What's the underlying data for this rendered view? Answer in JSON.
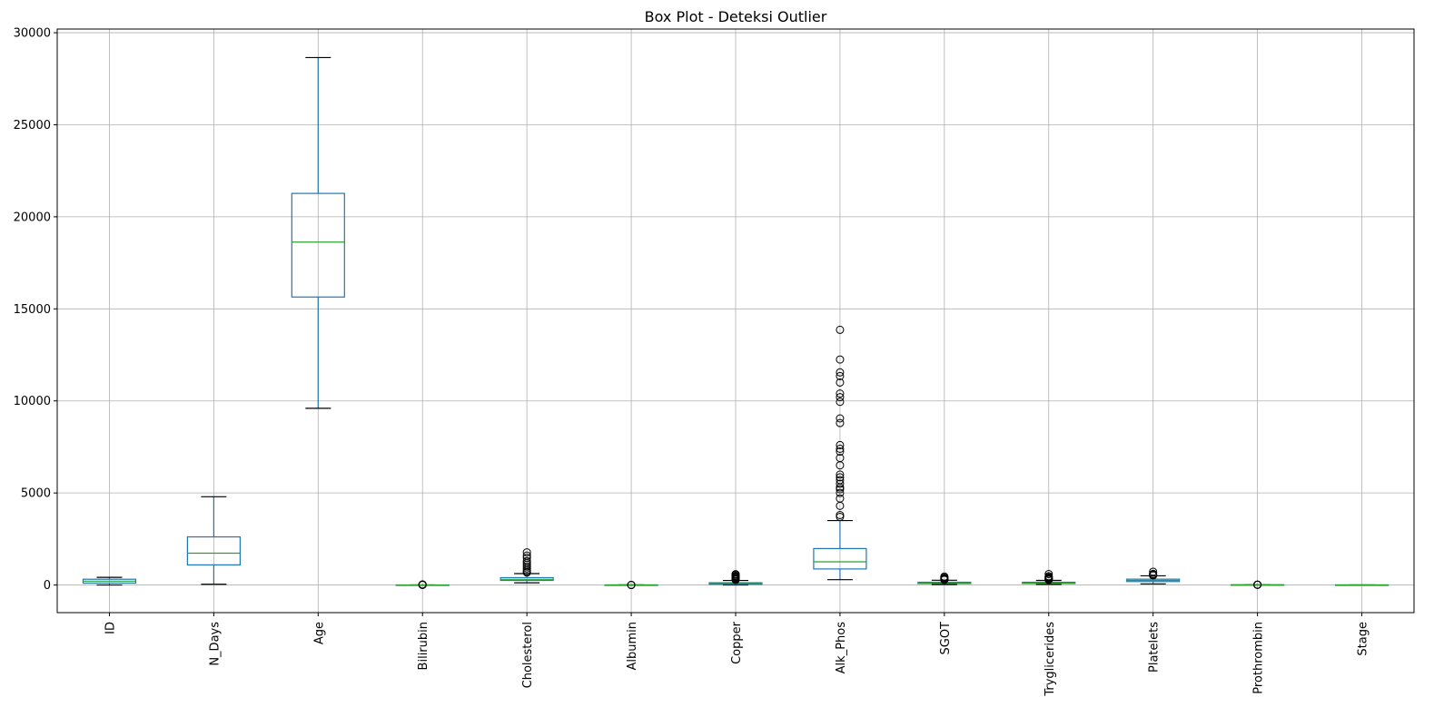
{
  "chart_data": {
    "type": "box",
    "title": "Box Plot - Deteksi Outlier",
    "xlabel": "",
    "ylabel": "",
    "ylim": [
      -1500,
      30200
    ],
    "yticks": [
      0,
      5000,
      10000,
      15000,
      20000,
      25000,
      30000
    ],
    "grid": true,
    "categories": [
      "ID",
      "N_Days",
      "Age",
      "Bilirubin",
      "Cholesterol",
      "Albumin",
      "Copper",
      "Alk_Phos",
      "SGOT",
      "Tryglicerides",
      "Platelets",
      "Prothrombin",
      "Stage"
    ],
    "boxes": [
      {
        "name": "ID",
        "whislo": 1,
        "q1": 105,
        "med": 209,
        "q3": 314,
        "whishi": 418,
        "fliers": []
      },
      {
        "name": "N_Days",
        "whislo": 41,
        "q1": 1093,
        "med": 1730,
        "q3": 2614,
        "whishi": 4795,
        "fliers": []
      },
      {
        "name": "Age",
        "whislo": 9598,
        "q1": 15644,
        "med": 18628,
        "q3": 21272,
        "whishi": 28650,
        "fliers": []
      },
      {
        "name": "Bilirubin",
        "whislo": 0.3,
        "q1": 0.8,
        "med": 1.4,
        "q3": 3.4,
        "whishi": 7.2,
        "fliers": [
          8,
          10,
          12,
          14,
          17,
          20,
          25,
          28
        ]
      },
      {
        "name": "Cholesterol",
        "whislo": 120,
        "q1": 249,
        "med": 309,
        "q3": 400,
        "whishi": 620,
        "fliers": [
          680,
          720,
          800,
          900,
          1000,
          1100,
          1200,
          1300,
          1480,
          1600,
          1775
        ]
      },
      {
        "name": "Albumin",
        "whislo": 2.4,
        "q1": 3.2,
        "med": 3.5,
        "q3": 3.8,
        "whishi": 4.6,
        "fliers": [
          1.9,
          2.0,
          4.8
        ]
      },
      {
        "name": "Copper",
        "whislo": 4,
        "q1": 41,
        "med": 73,
        "q3": 123,
        "whishi": 247,
        "fliers": [
          280,
          320,
          360,
          400,
          444,
          460,
          500,
          560,
          588
        ]
      },
      {
        "name": "Alk_Phos",
        "whislo": 289,
        "q1": 871,
        "med": 1259,
        "q3": 1980,
        "whishi": 3500,
        "fliers": [
          3700,
          3800,
          4300,
          4700,
          5000,
          5200,
          5300,
          5500,
          5700,
          5850,
          6000,
          6500,
          6900,
          7250,
          7400,
          7600,
          8800,
          9050,
          9950,
          10200,
          10400,
          11000,
          11350,
          11550,
          12250,
          13862
        ]
      },
      {
        "name": "SGOT",
        "whislo": 26,
        "q1": 80,
        "med": 114,
        "q3": 152,
        "whishi": 260,
        "fliers": [
          280,
          300,
          330,
          360,
          400,
          457
        ]
      },
      {
        "name": "Tryglicerides",
        "whislo": 33,
        "q1": 84,
        "med": 108,
        "q3": 151,
        "whishi": 250,
        "fliers": [
          280,
          300,
          320,
          350,
          380,
          420,
          480,
          598
        ]
      },
      {
        "name": "Platelets",
        "whislo": 62,
        "q1": 188,
        "med": 251,
        "q3": 318,
        "whishi": 500,
        "fliers": [
          520,
          560,
          600,
          721
        ]
      },
      {
        "name": "Prothrombin",
        "whislo": 9.0,
        "q1": 10.0,
        "med": 10.6,
        "q3": 11.1,
        "whishi": 12.9,
        "fliers": [
          13.5,
          14,
          15,
          17,
          18
        ]
      },
      {
        "name": "Stage",
        "whislo": 1,
        "q1": 2,
        "med": 3,
        "q3": 4,
        "whishi": 4,
        "fliers": []
      }
    ],
    "colors": {
      "box": "#1f77b4",
      "median": "#2ca02c",
      "whisker_cap": "#000000",
      "grid": "#b0b0b0",
      "flier": "#000000"
    }
  }
}
